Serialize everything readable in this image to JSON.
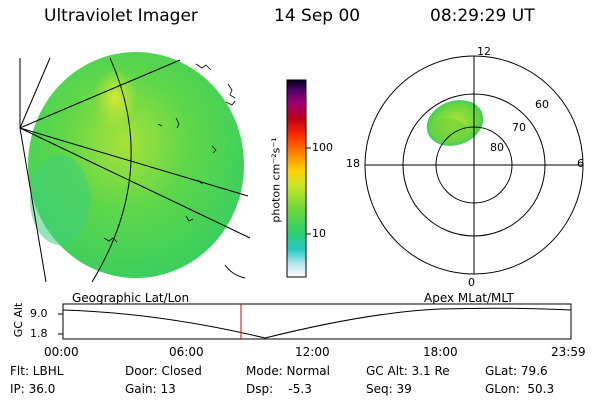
{
  "header": {
    "instrument": "Ultraviolet Imager",
    "date": "14 Sep 00",
    "time": "08:29:29 UT"
  },
  "colorbar": {
    "label": "photon cm⁻²s⁻¹",
    "ticks": [
      "100",
      "10"
    ]
  },
  "polar_plot": {
    "mlt_labels": {
      "top": "12",
      "left": "18",
      "right": "6",
      "bottom": "0"
    },
    "lat_labels": [
      "60",
      "70",
      "80"
    ]
  },
  "orbit_panel": {
    "left_caption": "Geographic Lat/Lon",
    "right_caption": "Apex MLat/MLT",
    "y_axis_label": "GC Alt",
    "y_ticks": [
      "9.0",
      "1.8"
    ],
    "x_ticks": [
      "00:00",
      "06:00",
      "12:00",
      "18:00",
      "23:59"
    ]
  },
  "info": {
    "row1": {
      "filter": "Flt: LBHL",
      "door": "Door: Closed",
      "mode": "Mode: Normal",
      "gc_alt": "GC Alt: 3.1 Re",
      "glat": "GLat: 79.6"
    },
    "row2": {
      "ip": "IP: 36.0",
      "gain": "Gain: 13",
      "dsp": "Dsp:    -5.3",
      "seq": "Seq: 39",
      "glon": "GLon:  50.3"
    }
  }
}
